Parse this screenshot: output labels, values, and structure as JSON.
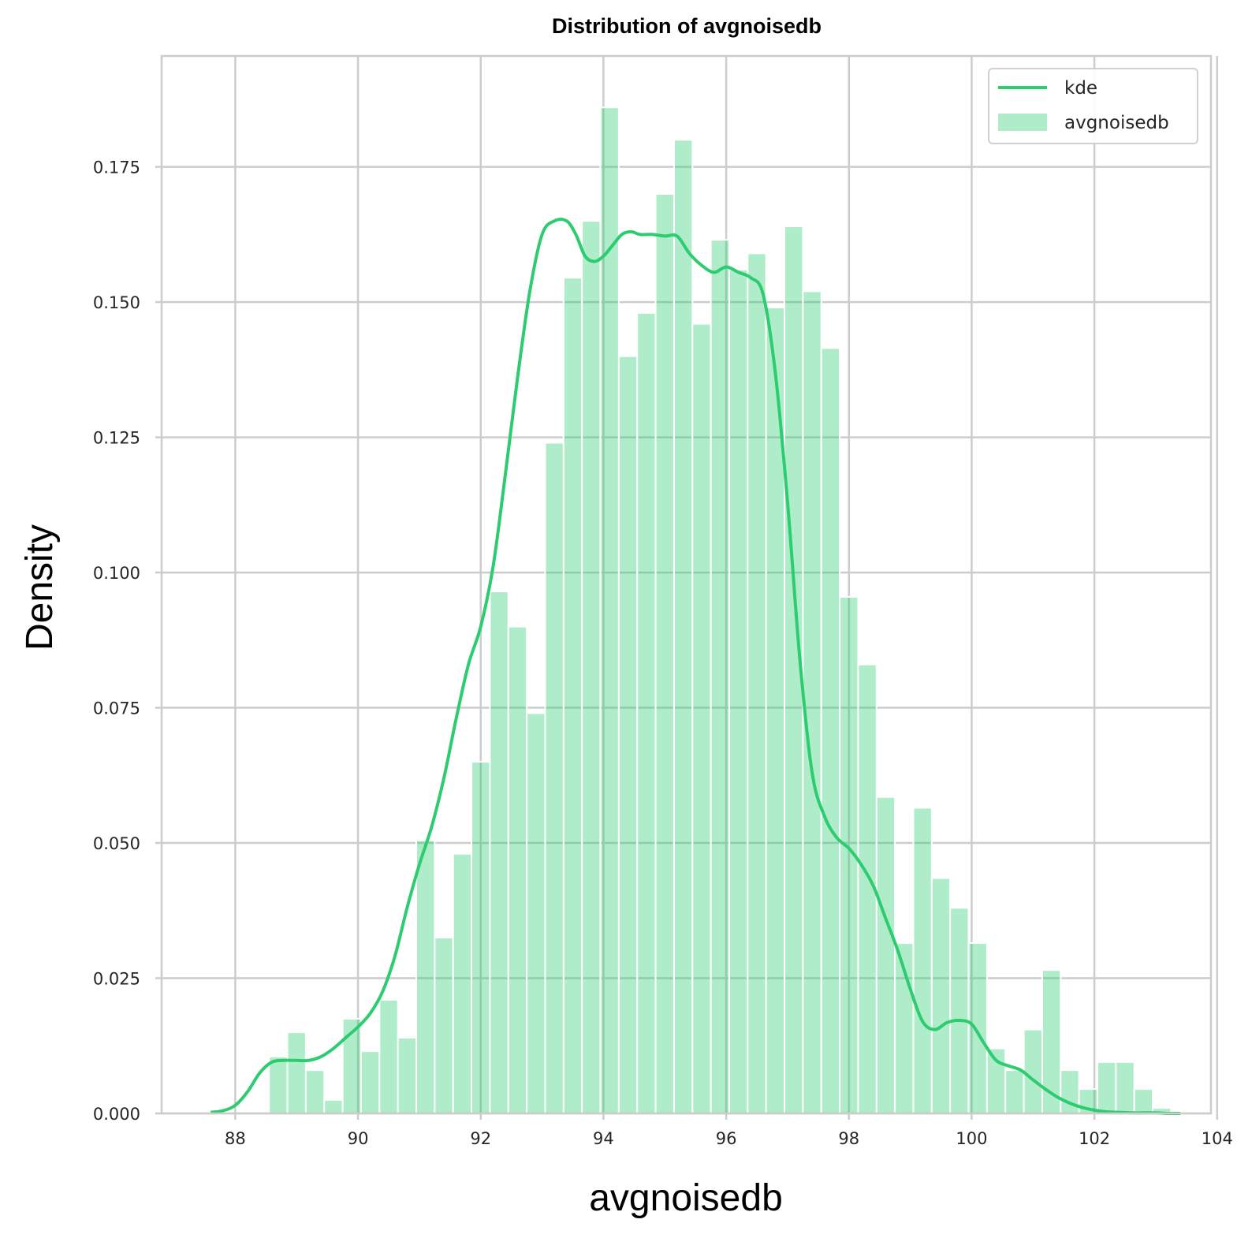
{
  "chart_data": {
    "type": "bar",
    "title": "Distribution of avgnoisedb",
    "xlabel": "avgnoisedb",
    "ylabel": "Density",
    "xlim": [
      86.8,
      103.9
    ],
    "ylim": [
      0,
      0.1955
    ],
    "xticks": [
      88,
      90,
      92,
      94,
      96,
      98,
      100,
      102,
      104
    ],
    "xtick_labels": [
      "88",
      "90",
      "92",
      "94",
      "96",
      "98",
      "100",
      "102",
      "104"
    ],
    "yticks": [
      0.0,
      0.025,
      0.05,
      0.075,
      0.1,
      0.125,
      0.15,
      0.175
    ],
    "ytick_labels": [
      "0.000",
      "0.025",
      "0.050",
      "0.075",
      "0.100",
      "0.125",
      "0.150",
      "0.175"
    ],
    "grid": true,
    "legend_position": "top-right",
    "colors": {
      "kde": "#2ecc71",
      "hist": "#2ecc71",
      "hist_opacity": 0.38,
      "grid": "#cccccc"
    },
    "histogram": {
      "name": "avgnoisedb",
      "bin_start": 88.55,
      "bin_width": 0.3,
      "values": [
        0.0105,
        0.015,
        0.008,
        0.0025,
        0.0175,
        0.0115,
        0.021,
        0.014,
        0.0505,
        0.0325,
        0.048,
        0.065,
        0.0965,
        0.09,
        0.074,
        0.124,
        0.1545,
        0.165,
        0.186,
        0.14,
        0.148,
        0.17,
        0.18,
        0.146,
        0.1615,
        0.156,
        0.159,
        0.149,
        0.164,
        0.152,
        0.1415,
        0.0955,
        0.083,
        0.0585,
        0.0315,
        0.0565,
        0.0435,
        0.038,
        0.0315,
        0.012,
        0.008,
        0.0155,
        0.0265,
        0.008,
        0.0045,
        0.0095,
        0.0095,
        0.0045,
        0.001
      ]
    },
    "kde": {
      "name": "kde",
      "x": [
        87.6,
        87.8,
        88.0,
        88.2,
        88.4,
        88.6,
        88.8,
        89.0,
        89.2,
        89.4,
        89.6,
        89.8,
        90.0,
        90.2,
        90.4,
        90.6,
        90.8,
        91.0,
        91.2,
        91.4,
        91.6,
        91.8,
        92.0,
        92.2,
        92.4,
        92.6,
        92.8,
        93.0,
        93.2,
        93.4,
        93.55,
        93.7,
        93.85,
        94.0,
        94.15,
        94.3,
        94.45,
        94.6,
        94.8,
        95.0,
        95.2,
        95.4,
        95.6,
        95.8,
        96.0,
        96.2,
        96.4,
        96.6,
        96.8,
        97.0,
        97.2,
        97.4,
        97.6,
        97.8,
        98.0,
        98.2,
        98.4,
        98.6,
        98.8,
        99.0,
        99.2,
        99.4,
        99.6,
        99.8,
        100.0,
        100.2,
        100.4,
        100.6,
        100.8,
        101.0,
        101.2,
        101.4,
        101.6,
        101.8,
        102.0,
        102.2,
        102.4,
        102.6,
        102.8,
        103.0,
        103.2,
        103.4
      ],
      "y": [
        0.0002,
        0.0005,
        0.0015,
        0.004,
        0.0075,
        0.0095,
        0.0098,
        0.0098,
        0.0098,
        0.0105,
        0.012,
        0.014,
        0.016,
        0.0185,
        0.0225,
        0.029,
        0.038,
        0.046,
        0.053,
        0.062,
        0.073,
        0.083,
        0.09,
        0.101,
        0.118,
        0.136,
        0.152,
        0.1625,
        0.165,
        0.165,
        0.1625,
        0.1585,
        0.1575,
        0.1585,
        0.1605,
        0.1625,
        0.163,
        0.1625,
        0.1625,
        0.1622,
        0.1622,
        0.159,
        0.1568,
        0.1555,
        0.1565,
        0.1555,
        0.1545,
        0.1515,
        0.137,
        0.113,
        0.084,
        0.063,
        0.055,
        0.051,
        0.049,
        0.046,
        0.042,
        0.036,
        0.03,
        0.023,
        0.017,
        0.0155,
        0.0168,
        0.0172,
        0.0165,
        0.013,
        0.0098,
        0.0088,
        0.008,
        0.0062,
        0.0045,
        0.003,
        0.0019,
        0.0011,
        0.0006,
        0.0003,
        0.0002,
        0.0001,
        0.0001,
        0.0001,
        0.0,
        0.0
      ]
    }
  }
}
